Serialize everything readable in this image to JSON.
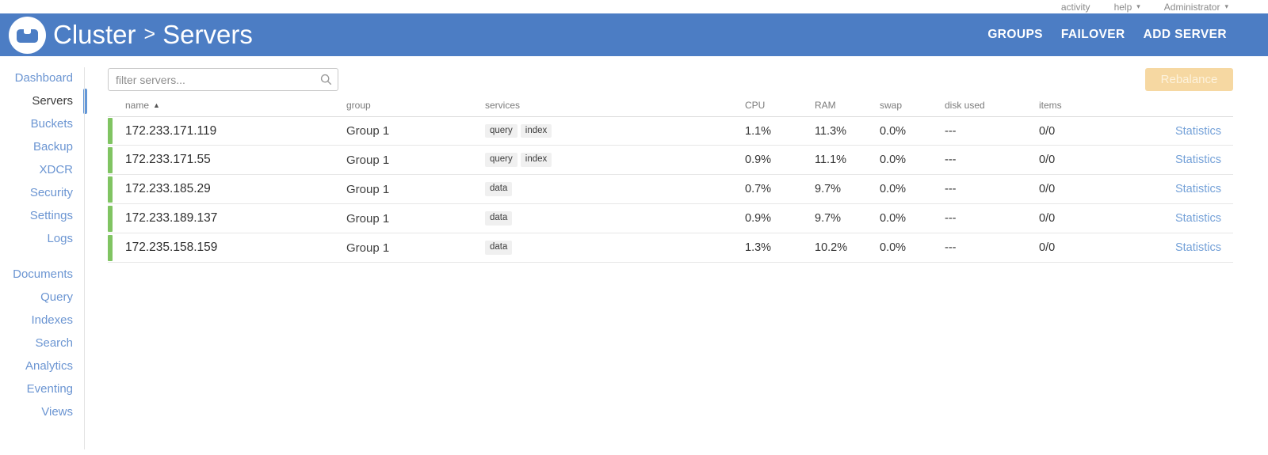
{
  "topbar": {
    "activity_label": "activity",
    "help_label": "help",
    "user_label": "Administrator"
  },
  "header": {
    "breadcrumb_root": "Cluster",
    "breadcrumb_separator": ">",
    "breadcrumb_page": "Servers",
    "nav": [
      {
        "label": "GROUPS"
      },
      {
        "label": "FAILOVER"
      },
      {
        "label": "ADD SERVER"
      }
    ]
  },
  "sidebar": {
    "sections": [
      {
        "items": [
          {
            "label": "Dashboard",
            "active": false
          },
          {
            "label": "Servers",
            "active": true
          },
          {
            "label": "Buckets",
            "active": false
          },
          {
            "label": "Backup",
            "active": false
          },
          {
            "label": "XDCR",
            "active": false
          },
          {
            "label": "Security",
            "active": false
          },
          {
            "label": "Settings",
            "active": false
          },
          {
            "label": "Logs",
            "active": false
          }
        ]
      },
      {
        "items": [
          {
            "label": "Documents",
            "active": false
          },
          {
            "label": "Query",
            "active": false
          },
          {
            "label": "Indexes",
            "active": false
          },
          {
            "label": "Search",
            "active": false
          },
          {
            "label": "Analytics",
            "active": false
          },
          {
            "label": "Eventing",
            "active": false
          },
          {
            "label": "Views",
            "active": false
          }
        ]
      }
    ]
  },
  "toolbar": {
    "filter_placeholder": "filter servers...",
    "rebalance_label": "Rebalance"
  },
  "table": {
    "columns": {
      "name": "name",
      "group": "group",
      "services": "services",
      "cpu": "CPU",
      "ram": "RAM",
      "swap": "swap",
      "disk": "disk used",
      "items": "items"
    },
    "rows": [
      {
        "name": "172.233.171.119",
        "group": "Group 1",
        "services": [
          "query",
          "index"
        ],
        "cpu": "1.1%",
        "ram": "11.3%",
        "swap": "0.0%",
        "disk": "---",
        "items": "0/0",
        "stats": "Statistics"
      },
      {
        "name": "172.233.171.55",
        "group": "Group 1",
        "services": [
          "query",
          "index"
        ],
        "cpu": "0.9%",
        "ram": "11.1%",
        "swap": "0.0%",
        "disk": "---",
        "items": "0/0",
        "stats": "Statistics"
      },
      {
        "name": "172.233.185.29",
        "group": "Group 1",
        "services": [
          "data"
        ],
        "cpu": "0.7%",
        "ram": "9.7%",
        "swap": "0.0%",
        "disk": "---",
        "items": "0/0",
        "stats": "Statistics"
      },
      {
        "name": "172.233.189.137",
        "group": "Group 1",
        "services": [
          "data"
        ],
        "cpu": "0.9%",
        "ram": "9.7%",
        "swap": "0.0%",
        "disk": "---",
        "items": "0/0",
        "stats": "Statistics"
      },
      {
        "name": "172.235.158.159",
        "group": "Group 1",
        "services": [
          "data"
        ],
        "cpu": "1.3%",
        "ram": "10.2%",
        "swap": "0.0%",
        "disk": "---",
        "items": "0/0",
        "stats": "Statistics"
      }
    ]
  },
  "colors": {
    "header_blue": "#4c7dc4",
    "status_green": "#80c462",
    "sidebar_link_blue": "#6b95d2",
    "statistics_link_blue": "#74a1d8",
    "rebalance_bg": "#f6d8a2",
    "rebalance_fg": "#fdf2dc",
    "active_indicator": "#6397d7"
  }
}
